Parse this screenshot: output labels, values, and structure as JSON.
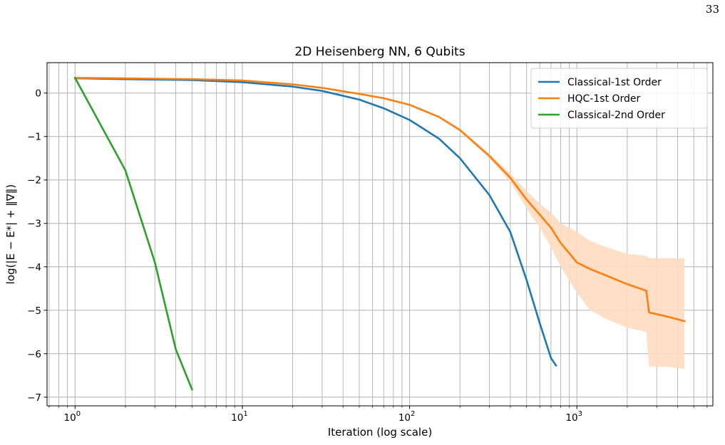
{
  "page": {
    "number": "33"
  },
  "chart_data": {
    "type": "line",
    "title": "2D Heisenberg NN, 6 Qubits",
    "xlabel": "Iteration (log scale)",
    "ylabel": "log(|E − E*| + ‖∇‖)",
    "xscale": "log",
    "xlim": [
      0.68,
      6500
    ],
    "ylim": [
      -7.2,
      0.7
    ],
    "xticks": [
      {
        "value": 1,
        "mantissa": "10",
        "exp": "0"
      },
      {
        "value": 10,
        "mantissa": "10",
        "exp": "1"
      },
      {
        "value": 100,
        "mantissa": "10",
        "exp": "2"
      },
      {
        "value": 1000,
        "mantissa": "10",
        "exp": "3"
      }
    ],
    "yticks": [
      {
        "value": 0,
        "label": "0"
      },
      {
        "value": -1,
        "label": "−1"
      },
      {
        "value": -2,
        "label": "−2"
      },
      {
        "value": -3,
        "label": "−3"
      },
      {
        "value": -4,
        "label": "−4"
      },
      {
        "value": -5,
        "label": "−5"
      },
      {
        "value": -6,
        "label": "−6"
      },
      {
        "value": -7,
        "label": "−7"
      }
    ],
    "grid": true,
    "grid_minor": true,
    "legend_position": "top-right",
    "series": [
      {
        "name": "Classical-1st Order",
        "color": "#1f77b4",
        "x": [
          1,
          2,
          5,
          10,
          20,
          30,
          50,
          70,
          100,
          150,
          200,
          300,
          400,
          500,
          600,
          700,
          750
        ],
        "y": [
          0.34,
          0.32,
          0.3,
          0.25,
          0.15,
          0.05,
          -0.15,
          -0.35,
          -0.62,
          -1.05,
          -1.5,
          -2.35,
          -3.2,
          -4.3,
          -5.3,
          -6.1,
          -6.27
        ]
      },
      {
        "name": "HQC-1st Order",
        "color": "#ff7f0e",
        "band_color": "#ffdcbf",
        "x": [
          1,
          2,
          5,
          10,
          20,
          30,
          50,
          70,
          100,
          150,
          200,
          300,
          400,
          500,
          600,
          700,
          800,
          1000,
          1200,
          1500,
          2000,
          2600,
          2700,
          3500,
          4400
        ],
        "y": [
          0.35,
          0.34,
          0.32,
          0.29,
          0.2,
          0.12,
          -0.02,
          -0.12,
          -0.27,
          -0.55,
          -0.85,
          -1.45,
          -1.95,
          -2.45,
          -2.8,
          -3.1,
          -3.45,
          -3.9,
          -4.05,
          -4.2,
          -4.4,
          -4.55,
          -5.05,
          -5.15,
          -5.25
        ],
        "band_upper": [
          0.35,
          0.34,
          0.32,
          0.29,
          0.2,
          0.12,
          -0.02,
          -0.12,
          -0.27,
          -0.53,
          -0.82,
          -1.4,
          -1.85,
          -2.25,
          -2.55,
          -2.75,
          -3.0,
          -3.2,
          -3.4,
          -3.55,
          -3.7,
          -3.75,
          -3.8,
          -3.8,
          -3.8
        ],
        "band_lower": [
          0.35,
          0.34,
          0.32,
          0.29,
          0.2,
          0.12,
          -0.02,
          -0.12,
          -0.27,
          -0.57,
          -0.88,
          -1.5,
          -2.05,
          -2.65,
          -3.1,
          -3.55,
          -4.0,
          -4.6,
          -5.0,
          -5.2,
          -5.4,
          -5.5,
          -6.3,
          -6.3,
          -6.35
        ]
      },
      {
        "name": "Classical-2nd Order",
        "color": "#2ca02c",
        "x": [
          1,
          2,
          3,
          4,
          5
        ],
        "y": [
          0.35,
          -1.78,
          -3.9,
          -5.9,
          -6.82
        ]
      }
    ]
  }
}
